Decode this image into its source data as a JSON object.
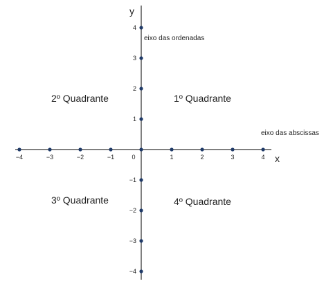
{
  "axes": {
    "x_label": "x",
    "y_label": "y",
    "x_axis_name": "eixo das abscissas",
    "y_axis_name": "eixo das ordenadas",
    "origin_label": "0",
    "x_ticks": [
      "−4",
      "−3",
      "−2",
      "−1",
      "1",
      "2",
      "3",
      "4"
    ],
    "y_ticks": [
      "4",
      "3",
      "2",
      "1",
      "−1",
      "−2",
      "−3",
      "−4"
    ]
  },
  "quadrants": {
    "q1": "1º Quadrante",
    "q2": "2º Quadrante",
    "q3": "3º Quadrante",
    "q4": "4º Quadrante"
  },
  "colors": {
    "axis": "#555555",
    "point": "#1f3a68",
    "text": "#222222"
  }
}
